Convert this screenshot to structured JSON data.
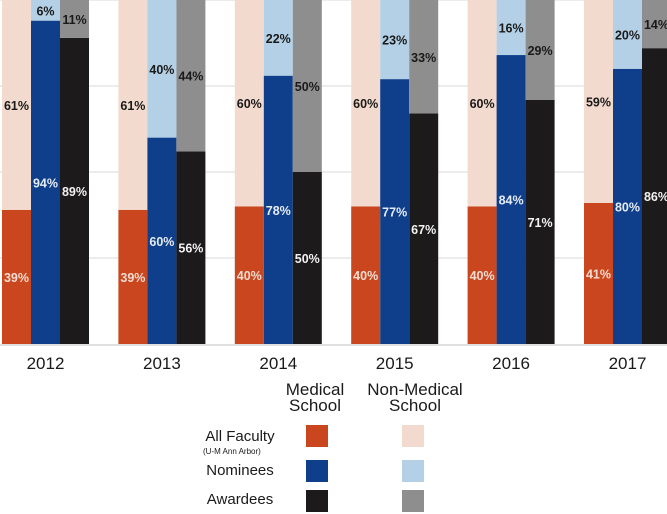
{
  "chart_data": {
    "type": "bar",
    "stacked": true,
    "title": "",
    "xlabel": "",
    "ylabel": "",
    "ylim": [
      0,
      100
    ],
    "grid": true,
    "categories": [
      "2012",
      "2013",
      "2014",
      "2015",
      "2016",
      "2017"
    ],
    "bar_groups": [
      "All Faculty (U-M Ann Arbor)",
      "Nominees",
      "Awardees"
    ],
    "series": [
      {
        "name": "All Faculty - Medical School",
        "group": "All Faculty (U-M Ann Arbor)",
        "color": "#c9461f",
        "label_color": "#f3ddd2",
        "values": [
          39,
          39,
          40,
          40,
          40,
          41
        ]
      },
      {
        "name": "All Faculty - Non-Medical School",
        "group": "All Faculty (U-M Ann Arbor)",
        "color": "#f3dace",
        "label_color": "#1a1a1a",
        "values": [
          61,
          61,
          60,
          60,
          60,
          59
        ]
      },
      {
        "name": "Nominees - Medical School",
        "group": "Nominees",
        "color": "#0f3f8a",
        "label_color": "#e6ecf5",
        "values": [
          94,
          60,
          78,
          77,
          84,
          80
        ]
      },
      {
        "name": "Nominees - Non-Medical School",
        "group": "Nominees",
        "color": "#b3d0e6",
        "label_color": "#1a1a1a",
        "values": [
          6,
          40,
          22,
          23,
          16,
          20
        ]
      },
      {
        "name": "Awardees - Medical School",
        "group": "Awardees",
        "color": "#1c1a1b",
        "label_color": "#f2f2f2",
        "values": [
          89,
          56,
          50,
          67,
          71,
          86
        ]
      },
      {
        "name": "Awardees - Non-Medical School",
        "group": "Awardees",
        "color": "#8e8e8e",
        "label_color": "#1a1a1a",
        "values": [
          11,
          44,
          50,
          33,
          29,
          14
        ]
      }
    ],
    "legend": {
      "placement": "bottom-center",
      "columns": [
        "Medical School",
        "Non-Medical School"
      ],
      "rows": [
        {
          "label": "All Faculty",
          "sublabel": "(U-M Ann Arbor)",
          "colors": [
            "#c9461f",
            "#f3dace"
          ]
        },
        {
          "label": "Nominees",
          "colors": [
            "#0f3f8a",
            "#b3d0e6"
          ]
        },
        {
          "label": "Awardees",
          "colors": [
            "#1c1a1b",
            "#8e8e8e"
          ]
        }
      ]
    }
  }
}
